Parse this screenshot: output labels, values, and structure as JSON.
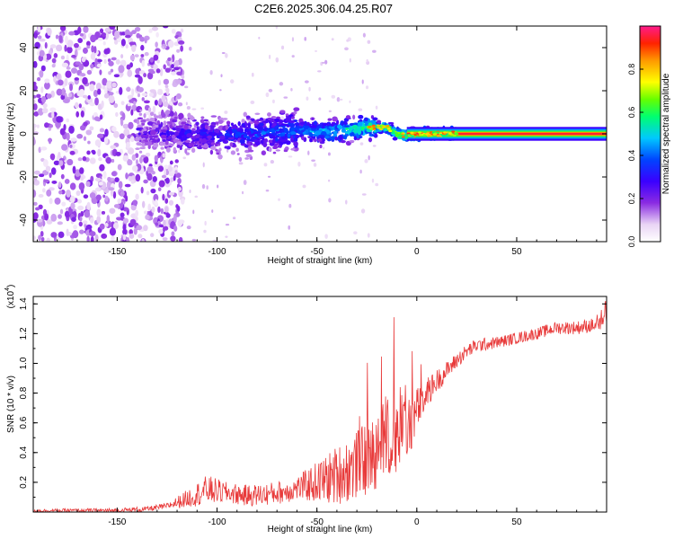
{
  "title": "C2E6.2025.306.04.25.R07",
  "chart_data": [
    {
      "type": "heatmap",
      "title": "C2E6.2025.306.04.25.R07",
      "xlabel": "Height of straight line (km)",
      "ylabel": "Frequency (Hz)",
      "xlim": [
        -192,
        95
      ],
      "ylim": [
        -50,
        50
      ],
      "xticks": [
        -150,
        -100,
        -50,
        0,
        50
      ],
      "yticks": [
        -40,
        -20,
        0,
        20,
        40
      ],
      "xtick_labels": [
        "-150",
        "-100",
        "-50",
        "0",
        "50"
      ],
      "ytick_labels": [
        "-40",
        "-20",
        "0",
        "20",
        "40"
      ],
      "colorbar": {
        "label": "Normalized spectral amplitude",
        "range": [
          0,
          1
        ],
        "ticks": [
          0.0,
          0.2,
          0.4,
          0.6,
          0.8
        ],
        "tick_labels": [
          "0.0",
          "0.2",
          "0.4",
          "0.6",
          "0.8"
        ],
        "colormap": "rainbow"
      },
      "description_values": {
        "noise_region_x": [
          -192,
          -125
        ],
        "signal_centerline": [
          [
            -140,
            0.5
          ],
          [
            -120,
            0
          ],
          [
            -100,
            -1
          ],
          [
            -80,
            0
          ],
          [
            -60,
            1.5
          ],
          [
            -45,
            1
          ],
          [
            -35,
            2
          ],
          [
            -25,
            3
          ],
          [
            -15,
            3
          ],
          [
            -10,
            0
          ],
          [
            -5,
            -1
          ],
          [
            0,
            0
          ],
          [
            10,
            0
          ],
          [
            20,
            0
          ],
          [
            50,
            0
          ],
          [
            95,
            0
          ]
        ],
        "signal_amplitude": [
          [
            -140,
            0.2
          ],
          [
            -100,
            0.3
          ],
          [
            -60,
            0.4
          ],
          [
            -40,
            0.5
          ],
          [
            -20,
            0.6
          ],
          [
            -5,
            0.7
          ],
          [
            0,
            0.9
          ],
          [
            20,
            0.95
          ],
          [
            95,
            0.95
          ]
        ]
      }
    },
    {
      "type": "line",
      "xlabel": "Height of straight line (km)",
      "ylabel": "SNR (10 * v/v)",
      "y_scale_label": "(x10",
      "y_scale_exponent": "4",
      "y_scale_close": ")",
      "xlim": [
        -192,
        95
      ],
      "ylim": [
        0,
        1.45
      ],
      "xticks": [
        -150,
        -100,
        -50,
        0,
        50
      ],
      "yticks": [
        0.2,
        0.4,
        0.6,
        0.8,
        1.0,
        1.2,
        1.4
      ],
      "xtick_labels": [
        "-150",
        "-100",
        "-50",
        "0",
        "50"
      ],
      "ytick_labels": [
        "0.2",
        "0.4",
        "0.6",
        "0.8",
        "1.0",
        "1.2",
        "1.4"
      ],
      "color": "#e83a3a",
      "series": [
        {
          "name": "SNR",
          "trend_x": [
            -192,
            -150,
            -135,
            -125,
            -115,
            -105,
            -95,
            -85,
            -75,
            -65,
            -55,
            -45,
            -35,
            -28,
            -22,
            -18,
            -12,
            -8,
            -5,
            0,
            5,
            10,
            15,
            20,
            25,
            30,
            40,
            50,
            60,
            70,
            80,
            90,
            95
          ],
          "trend_y": [
            0.01,
            0.01,
            0.02,
            0.04,
            0.09,
            0.15,
            0.13,
            0.11,
            0.12,
            0.14,
            0.18,
            0.22,
            0.28,
            0.33,
            0.38,
            0.5,
            0.5,
            0.55,
            0.55,
            0.68,
            0.8,
            0.88,
            0.95,
            1.02,
            1.08,
            1.12,
            1.14,
            1.17,
            1.2,
            1.24,
            1.24,
            1.26,
            1.28
          ],
          "noise_x": [
            -192,
            -125,
            -105,
            -95,
            -60,
            -40,
            -25,
            -15,
            -5,
            5,
            15,
            25,
            40,
            60,
            95
          ],
          "noise_y": [
            0.01,
            0.02,
            0.1,
            0.07,
            0.08,
            0.2,
            0.25,
            0.3,
            0.22,
            0.1,
            0.06,
            0.05,
            0.04,
            0.04,
            0.05
          ]
        }
      ]
    }
  ]
}
